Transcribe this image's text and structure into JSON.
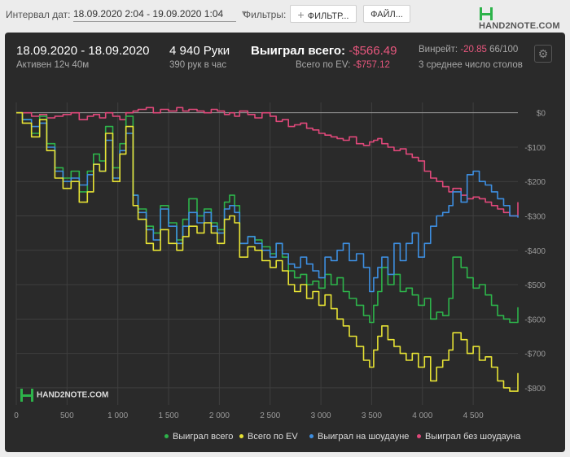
{
  "toolbar": {
    "interval_label": "Интервал дат:",
    "date_range": "18.09.2020 2:04 - 19.09.2020 1:04",
    "filters_label": "Фильтры:",
    "filter_button": "ФИЛЬТР...",
    "file_button": "ФАЙЛ...",
    "logo_text": "HAND2NOTE.COM"
  },
  "stats": {
    "date_range": "18.09.2020 - 18.09.2020",
    "active": "Активен 12ч 40м",
    "hands": "4 940 Руки",
    "hands_per_hour": "390 рук в час",
    "won_total_label": "Выиграл всего:",
    "won_total_value": "-$566.49",
    "ev_label": "Всего по EV:",
    "ev_value": "-$757.12",
    "winrate_label": "Винрейт:",
    "winrate_value": "-20.85",
    "winrate_unit": "66/100",
    "avg_tables": "3 среднее число столов"
  },
  "watermark": "HAND2NOTE.COM",
  "colors": {
    "won_total": "#2db34a",
    "ev": "#e6e234",
    "showdown": "#3d8ee0",
    "non_showdown": "#e0487a",
    "panel": "#2a2a2a",
    "grid": "#3f3f3f",
    "zero_line": "#9a9a9a"
  },
  "chart_data": {
    "type": "line",
    "title": "",
    "xlabel": "",
    "ylabel": "",
    "xlim": [
      0,
      4940
    ],
    "ylim": [
      -850,
      30
    ],
    "x_ticks": [
      0,
      500,
      1000,
      1500,
      2000,
      2500,
      3000,
      3500,
      4000,
      4500
    ],
    "x_tick_labels": [
      "0",
      "500",
      "1 000",
      "1 500",
      "2 000",
      "2 500",
      "3 000",
      "3 500",
      "4 000",
      "4 500"
    ],
    "y_ticks": [
      0,
      -100,
      -200,
      -300,
      -400,
      -500,
      -600,
      -700,
      -800
    ],
    "y_tick_labels": [
      "$0",
      "-$100",
      "-$200",
      "-$300",
      "-$400",
      "-$500",
      "-$600",
      "-$700",
      "-$800"
    ],
    "grid": true,
    "legend_position": "bottom",
    "series": [
      {
        "name": "Выиграл всего",
        "x": [
          0,
          60,
          150,
          230,
          300,
          380,
          460,
          540,
          620,
          700,
          760,
          820,
          880,
          950,
          1020,
          1080,
          1150,
          1200,
          1280,
          1350,
          1420,
          1500,
          1580,
          1640,
          1700,
          1780,
          1850,
          1920,
          1980,
          2050,
          2100,
          2150,
          2200,
          2280,
          2350,
          2420,
          2500,
          2560,
          2620,
          2680,
          2740,
          2800,
          2860,
          2920,
          2980,
          3040,
          3100,
          3160,
          3220,
          3280,
          3350,
          3420,
          3480,
          3520,
          3560,
          3600,
          3660,
          3720,
          3780,
          3840,
          3900,
          3960,
          4020,
          4080,
          4140,
          4200,
          4260,
          4300,
          4380,
          4440,
          4500,
          4560,
          4620,
          4680,
          4740,
          4800,
          4860,
          4940
        ],
        "values": [
          0,
          -20,
          -60,
          -10,
          -90,
          -160,
          -190,
          -170,
          -230,
          -170,
          -120,
          -140,
          -40,
          -160,
          -90,
          -10,
          -240,
          -280,
          -330,
          -350,
          -270,
          -320,
          -370,
          -310,
          -250,
          -300,
          -280,
          -320,
          -340,
          -260,
          -240,
          -270,
          -380,
          -360,
          -370,
          -390,
          -410,
          -380,
          -420,
          -460,
          -480,
          -470,
          -500,
          -490,
          -510,
          -470,
          -500,
          -480,
          -520,
          -540,
          -560,
          -590,
          -610,
          -560,
          -520,
          -450,
          -500,
          -470,
          -520,
          -510,
          -530,
          -560,
          -540,
          -600,
          -580,
          -590,
          -540,
          -420,
          -450,
          -480,
          -510,
          -500,
          -530,
          -560,
          -590,
          -600,
          -610,
          -566
        ]
      },
      {
        "name": "Всего по EV",
        "x": [
          0,
          60,
          150,
          230,
          300,
          380,
          460,
          540,
          620,
          700,
          760,
          820,
          880,
          950,
          1020,
          1080,
          1150,
          1200,
          1280,
          1350,
          1420,
          1500,
          1580,
          1640,
          1700,
          1780,
          1850,
          1920,
          1980,
          2050,
          2100,
          2150,
          2200,
          2280,
          2350,
          2420,
          2500,
          2560,
          2620,
          2680,
          2740,
          2800,
          2860,
          2920,
          2980,
          3040,
          3100,
          3160,
          3220,
          3280,
          3350,
          3420,
          3480,
          3520,
          3560,
          3600,
          3660,
          3720,
          3780,
          3840,
          3900,
          3960,
          4020,
          4080,
          4140,
          4200,
          4260,
          4300,
          4380,
          4440,
          4500,
          4560,
          4620,
          4680,
          4740,
          4800,
          4860,
          4940
        ],
        "values": [
          0,
          -30,
          -70,
          -20,
          -110,
          -190,
          -220,
          -200,
          -260,
          -230,
          -150,
          -170,
          -60,
          -200,
          -120,
          -40,
          -270,
          -310,
          -380,
          -400,
          -340,
          -380,
          -400,
          -360,
          -330,
          -350,
          -320,
          -350,
          -380,
          -310,
          -300,
          -320,
          -420,
          -390,
          -400,
          -430,
          -450,
          -430,
          -460,
          -500,
          -520,
          -500,
          -540,
          -520,
          -560,
          -530,
          -570,
          -600,
          -620,
          -650,
          -680,
          -720,
          -740,
          -690,
          -650,
          -620,
          -660,
          -680,
          -700,
          -720,
          -700,
          -740,
          -710,
          -780,
          -740,
          -720,
          -690,
          -640,
          -660,
          -700,
          -680,
          -720,
          -710,
          -740,
          -780,
          -800,
          -810,
          -757
        ]
      },
      {
        "name": "Выиграл на шоудауне",
        "x": [
          0,
          60,
          150,
          230,
          300,
          380,
          460,
          540,
          620,
          700,
          760,
          820,
          880,
          950,
          1020,
          1080,
          1150,
          1200,
          1280,
          1350,
          1420,
          1500,
          1580,
          1640,
          1700,
          1780,
          1850,
          1920,
          1980,
          2050,
          2100,
          2150,
          2200,
          2280,
          2350,
          2420,
          2500,
          2560,
          2620,
          2680,
          2740,
          2800,
          2860,
          2920,
          2980,
          3040,
          3100,
          3160,
          3220,
          3280,
          3350,
          3420,
          3480,
          3520,
          3560,
          3600,
          3660,
          3720,
          3780,
          3840,
          3900,
          3960,
          4020,
          4080,
          4140,
          4200,
          4260,
          4300,
          4380,
          4440,
          4500,
          4560,
          4620,
          4680,
          4740,
          4800,
          4860,
          4940
        ],
        "values": [
          0,
          -20,
          -40,
          -30,
          -100,
          -170,
          -200,
          -190,
          -210,
          -180,
          -150,
          -170,
          -80,
          -190,
          -110,
          -60,
          -240,
          -290,
          -340,
          -370,
          -280,
          -330,
          -380,
          -330,
          -290,
          -320,
          -290,
          -330,
          -350,
          -280,
          -270,
          -290,
          -380,
          -360,
          -380,
          -400,
          -420,
          -380,
          -410,
          -440,
          -450,
          -420,
          -440,
          -460,
          -480,
          -420,
          -430,
          -400,
          -380,
          -430,
          -410,
          -450,
          -520,
          -480,
          -450,
          -420,
          -470,
          -380,
          -430,
          -380,
          -350,
          -420,
          -380,
          -330,
          -300,
          -290,
          -270,
          -230,
          -260,
          -180,
          -170,
          -200,
          -210,
          -230,
          -250,
          -270,
          -300,
          -305
        ]
      },
      {
        "name": "Выиграл без шоудауна",
        "x": [
          0,
          60,
          150,
          230,
          300,
          380,
          460,
          540,
          620,
          700,
          760,
          820,
          880,
          950,
          1020,
          1080,
          1150,
          1200,
          1280,
          1350,
          1420,
          1500,
          1580,
          1640,
          1700,
          1780,
          1850,
          1920,
          1980,
          2050,
          2100,
          2150,
          2200,
          2280,
          2350,
          2420,
          2500,
          2560,
          2620,
          2680,
          2740,
          2800,
          2860,
          2920,
          2980,
          3040,
          3100,
          3160,
          3220,
          3280,
          3350,
          3420,
          3480,
          3520,
          3560,
          3600,
          3660,
          3720,
          3780,
          3840,
          3900,
          3960,
          4020,
          4080,
          4140,
          4200,
          4260,
          4300,
          4380,
          4440,
          4500,
          4560,
          4620,
          4680,
          4740,
          4800,
          4860,
          4940
        ],
        "values": [
          0,
          0,
          -10,
          -5,
          -15,
          -10,
          -5,
          0,
          -20,
          -10,
          -5,
          -15,
          0,
          -10,
          -20,
          0,
          5,
          10,
          15,
          0,
          10,
          5,
          15,
          5,
          10,
          5,
          0,
          10,
          5,
          -5,
          0,
          -10,
          5,
          -5,
          -15,
          0,
          -10,
          -25,
          -20,
          -40,
          -35,
          -30,
          -45,
          -50,
          -60,
          -65,
          -70,
          -75,
          -80,
          -70,
          -90,
          -95,
          -85,
          -80,
          -75,
          -90,
          -100,
          -110,
          -105,
          -120,
          -130,
          -140,
          -170,
          -190,
          -200,
          -215,
          -230,
          -220,
          -240,
          -250,
          -245,
          -250,
          -260,
          -270,
          -280,
          -290,
          -300,
          -260
        ]
      }
    ]
  }
}
